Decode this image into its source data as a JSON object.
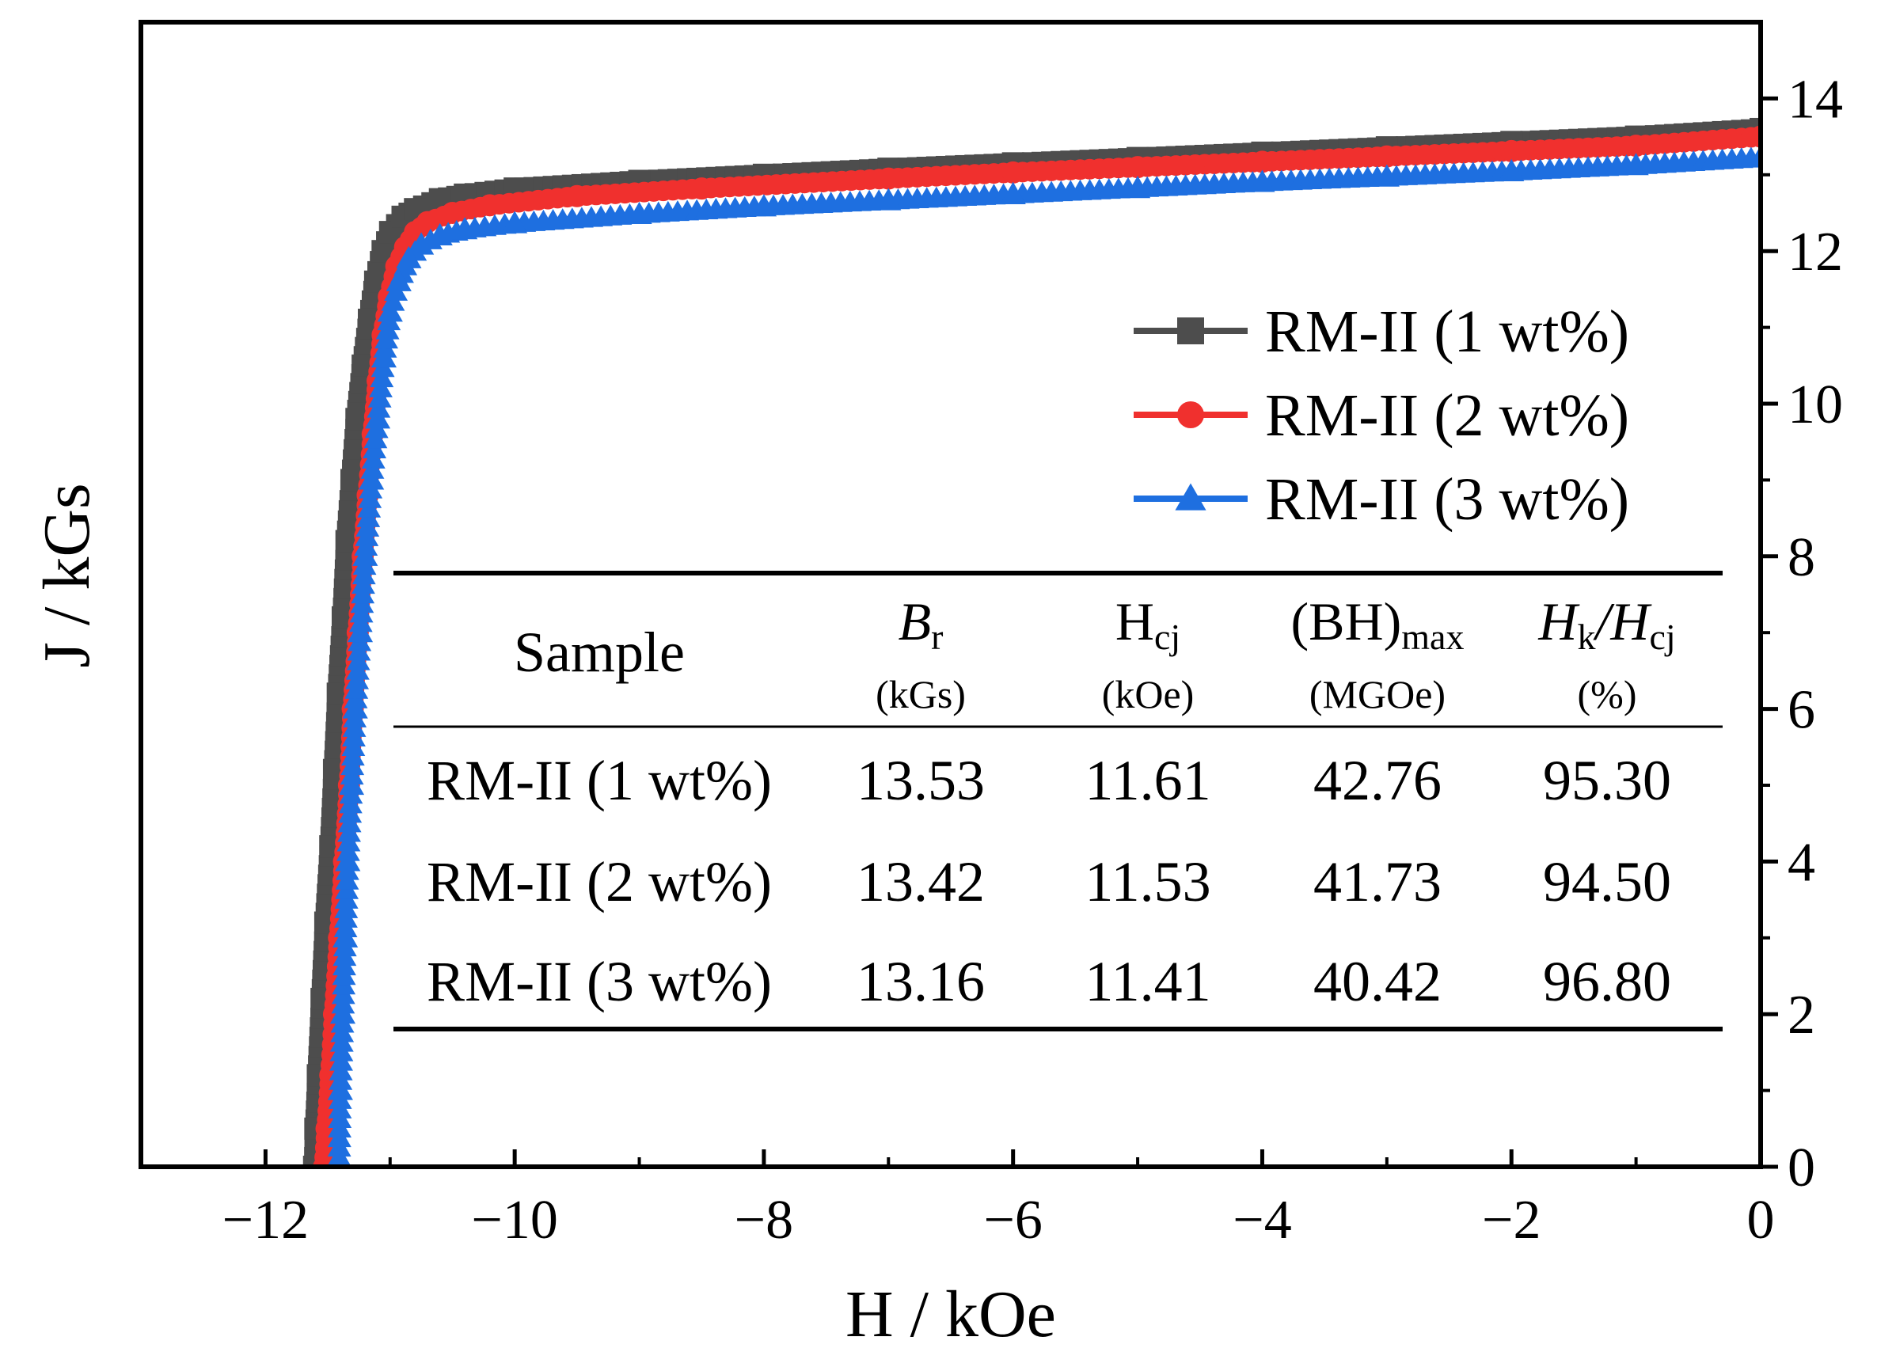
{
  "chart_data": {
    "type": "line",
    "title": "",
    "xlabel": "H / kOe",
    "ylabel": "J / kGs",
    "xlim": [
      -13,
      0
    ],
    "ylim": [
      0,
      15
    ],
    "x_ticks": [
      -12,
      -10,
      -8,
      -6,
      -4,
      -2,
      0
    ],
    "x_tick_labels": [
      "−12",
      "−10",
      "−8",
      "−6",
      "−4",
      "−2",
      "0"
    ],
    "y_ticks": [
      0,
      2,
      4,
      6,
      8,
      10,
      12,
      14
    ],
    "y_tick_labels": [
      "0",
      "2",
      "4",
      "6",
      "8",
      "10",
      "12",
      "14"
    ],
    "y_axis_side": "right",
    "grid": false,
    "legend_position": "top-right",
    "series": [
      {
        "name": "RM-II (1 wt%)",
        "color": "#4d4d4d",
        "marker": "square",
        "x": [
          -11.61,
          -11.6,
          -11.58,
          -11.55,
          -11.52,
          -11.48,
          -11.45,
          -11.42,
          -11.38,
          -11.35,
          -11.31,
          -11.27,
          -11.22,
          -11.17,
          -11.12,
          -11.06,
          -11.0,
          -10.9,
          -10.8,
          -10.6,
          -10.4,
          -10.0,
          -9.0,
          -8.0,
          -7.0,
          -6.0,
          -5.0,
          -4.0,
          -3.0,
          -2.0,
          -1.0,
          0.0
        ],
        "y": [
          0.0,
          0.5,
          1.2,
          2.2,
          3.2,
          4.2,
          5.2,
          6.2,
          7.2,
          8.2,
          9.0,
          9.8,
          10.5,
          11.1,
          11.6,
          12.0,
          12.25,
          12.45,
          12.55,
          12.68,
          12.74,
          12.82,
          12.92,
          13.0,
          13.08,
          13.15,
          13.22,
          13.29,
          13.36,
          13.43,
          13.5,
          13.6
        ]
      },
      {
        "name": "RM-II (2 wt%)",
        "color": "#f0302e",
        "marker": "circle",
        "x": [
          -11.53,
          -11.51,
          -11.48,
          -11.45,
          -11.41,
          -11.37,
          -11.33,
          -11.3,
          -11.26,
          -11.22,
          -11.18,
          -11.14,
          -11.1,
          -11.06,
          -11.01,
          -10.95,
          -10.88,
          -10.8,
          -10.7,
          -10.5,
          -10.2,
          -9.5,
          -8.5,
          -7.0,
          -6.0,
          -5.0,
          -4.0,
          -3.0,
          -2.0,
          -1.0,
          0.0
        ],
        "y": [
          0.0,
          0.5,
          1.2,
          2.0,
          3.0,
          4.0,
          5.0,
          6.0,
          7.0,
          8.0,
          8.8,
          9.6,
          10.3,
          10.9,
          11.4,
          11.8,
          12.05,
          12.25,
          12.38,
          12.5,
          12.6,
          12.72,
          12.82,
          12.95,
          13.03,
          13.1,
          13.17,
          13.24,
          13.31,
          13.38,
          13.5
        ]
      },
      {
        "name": "RM-II (3 wt%)",
        "color": "#1e6fe0",
        "marker": "triangle",
        "x": [
          -11.41,
          -11.4,
          -11.38,
          -11.36,
          -11.34,
          -11.31,
          -11.28,
          -11.24,
          -11.2,
          -11.15,
          -11.1,
          -11.05,
          -11.0,
          -10.93,
          -10.85,
          -10.75,
          -10.6,
          -10.4,
          -10.0,
          -9.0,
          -8.0,
          -7.0,
          -6.0,
          -5.0,
          -4.0,
          -3.0,
          -2.0,
          -1.0,
          0.0
        ],
        "y": [
          0.0,
          1.0,
          2.0,
          3.0,
          4.0,
          5.0,
          6.0,
          7.0,
          8.0,
          9.0,
          9.8,
          10.6,
          11.2,
          11.6,
          11.9,
          12.08,
          12.2,
          12.28,
          12.36,
          12.48,
          12.58,
          12.66,
          12.74,
          12.82,
          12.9,
          12.97,
          13.04,
          13.12,
          13.22
        ]
      }
    ],
    "table": {
      "columns": [
        {
          "main": "Sample",
          "sub": "",
          "unit": ""
        },
        {
          "main": "B",
          "sub": "r",
          "unit": "(kGs)"
        },
        {
          "main": "H",
          "sub": "cj",
          "unit": "(kOe)"
        },
        {
          "main": "(BH)",
          "sub": "max",
          "unit": "(MGOe)"
        },
        {
          "main": "H",
          "sub": "k",
          "main2": "/H",
          "sub2": "cj",
          "unit": "(%)"
        }
      ],
      "rows": [
        [
          "RM-II (1 wt%)",
          "13.53",
          "11.61",
          "42.76",
          "95.30"
        ],
        [
          "RM-II (2 wt%)",
          "13.42",
          "11.53",
          "41.73",
          "94.50"
        ],
        [
          "RM-II (3 wt%)",
          "13.16",
          "11.41",
          "40.42",
          "96.80"
        ]
      ]
    }
  }
}
